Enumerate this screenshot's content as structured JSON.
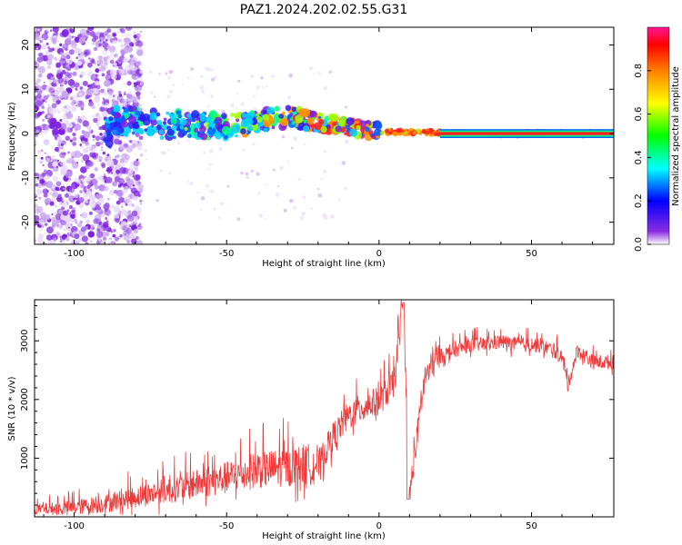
{
  "title": "PAZ1.2024.202.02.55.G31",
  "chart_data": [
    {
      "type": "heatmap",
      "title": "PAZ1.2024.202.02.55.G31",
      "xlabel": "Height of straight line (km)",
      "ylabel": "Frequency (Hz)",
      "xlim": [
        -113,
        77
      ],
      "ylim": [
        -25,
        24
      ],
      "xticks": [
        -100,
        -50,
        0,
        50
      ],
      "yticks": [
        -20,
        -10,
        0,
        10,
        20
      ],
      "grid": false,
      "colormap": "rainbow",
      "colorbar": {
        "label": "Normalized spectral amplitude",
        "range": [
          0,
          1
        ],
        "ticks": [
          0.0,
          0.2,
          0.4,
          0.6,
          0.8
        ]
      },
      "description_points": [
        {
          "x": -88,
          "freq": 3.0
        },
        {
          "x": -75,
          "freq": 2.0
        },
        {
          "x": -60,
          "freq": 2.0
        },
        {
          "x": -50,
          "freq": 1.5
        },
        {
          "x": -40,
          "freq": 2.5
        },
        {
          "x": -30,
          "freq": 4.0
        },
        {
          "x": -20,
          "freq": 2.5
        },
        {
          "x": -10,
          "freq": 1.5
        },
        {
          "x": 0,
          "freq": 0.5
        },
        {
          "x": 10,
          "freq": 0.3
        },
        {
          "x": 30,
          "freq": 0.0
        },
        {
          "x": 77,
          "freq": 0.0
        }
      ]
    },
    {
      "type": "line",
      "xlabel": "Height of straight line (km)",
      "ylabel": "SNR (10 * v/v)",
      "xlim": [
        -113,
        77
      ],
      "ylim": [
        0,
        3700
      ],
      "xticks": [
        -100,
        -50,
        0,
        50
      ],
      "yticks": [
        1000,
        2000,
        3000
      ],
      "grid": false,
      "series": [
        {
          "color": "#ee3a3a",
          "x": [
            -113,
            -100,
            -90,
            -80,
            -70,
            -60,
            -50,
            -40,
            -30,
            -20,
            -15,
            -10,
            -5,
            0,
            5,
            8,
            10,
            15,
            20,
            25,
            30,
            35,
            40,
            45,
            50,
            55,
            60,
            62,
            65,
            70,
            77
          ],
          "y": [
            100,
            120,
            180,
            280,
            380,
            480,
            580,
            700,
            750,
            800,
            1300,
            1650,
            1800,
            1900,
            2200,
            3650,
            300,
            2300,
            2700,
            2800,
            2900,
            2900,
            2950,
            2900,
            2900,
            2850,
            2700,
            2200,
            2800,
            2600,
            2600
          ]
        }
      ]
    }
  ]
}
